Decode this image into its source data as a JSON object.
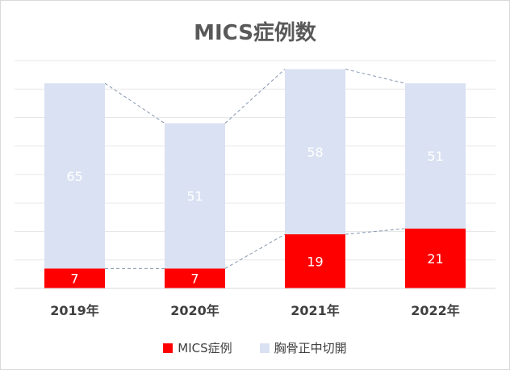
{
  "chart_data": {
    "type": "bar",
    "stacked": true,
    "title": "MICS症例数",
    "categories": [
      "2019年",
      "2020年",
      "2021年",
      "2022年"
    ],
    "series": [
      {
        "name": "MICS症例",
        "values": [
          7,
          7,
          19,
          21
        ],
        "color": "#ff0000"
      },
      {
        "name": "胸骨正中切開",
        "values": [
          65,
          51,
          58,
          51
        ],
        "color": "#d9e1f2"
      }
    ],
    "ylim": [
      0,
      80
    ],
    "grid": true,
    "series_lines": true,
    "legend": "bottom"
  }
}
